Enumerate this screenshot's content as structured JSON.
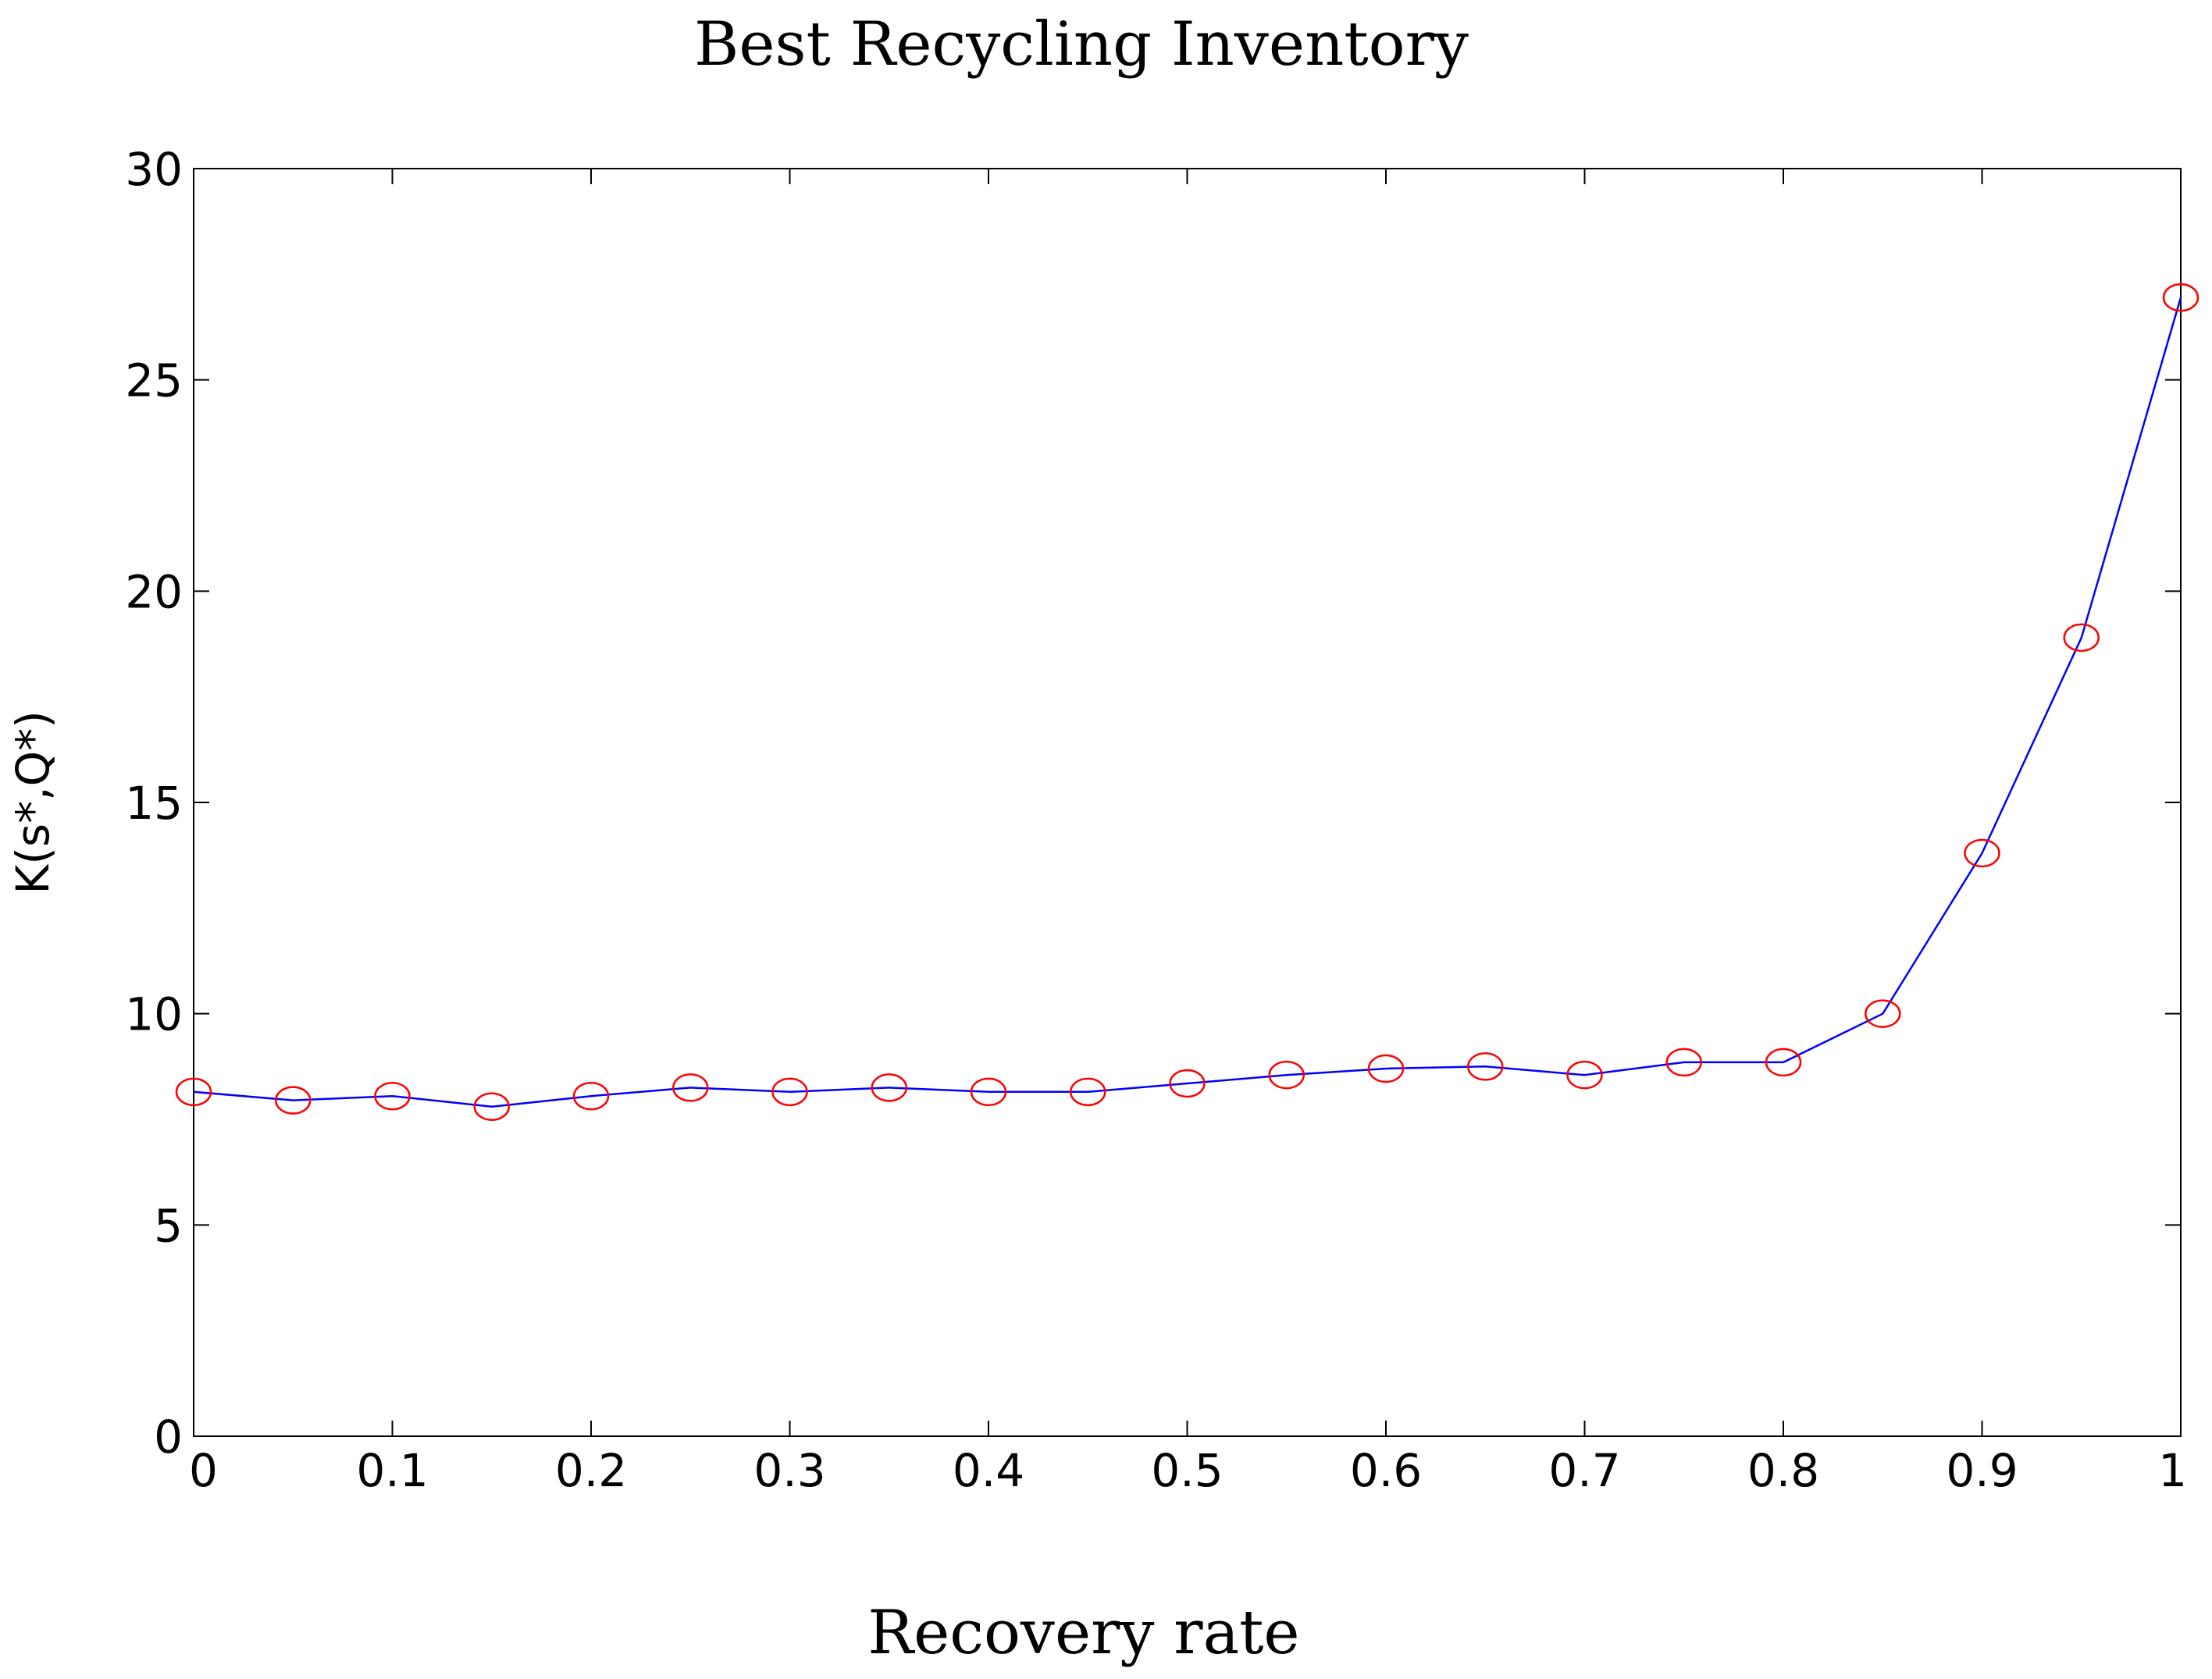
{
  "chart_data": {
    "type": "line",
    "title": "Best Recycling Inventory",
    "xlabel": "Recovery rate",
    "ylabel": "K(s*,Q*)",
    "xlim": [
      0,
      1
    ],
    "ylim": [
      0,
      30
    ],
    "xticks": [
      0,
      0.1,
      0.2,
      0.3,
      0.4,
      0.5,
      0.6,
      0.7,
      0.8,
      0.9,
      1
    ],
    "xtick_labels": [
      "0",
      "0.1",
      "0.2",
      "0.3",
      "0.4",
      "0.5",
      "0.6",
      "0.7",
      "0.8",
      "0.9",
      "1"
    ],
    "yticks": [
      0,
      5,
      10,
      15,
      20,
      25,
      30
    ],
    "ytick_labels": [
      "0",
      "5",
      "10",
      "15",
      "20",
      "25",
      "30"
    ],
    "grid": false,
    "series": [
      {
        "name": "K(s*,Q*)",
        "line_color": "#0000ff",
        "marker": "circle",
        "marker_color": "#ff0000",
        "x": [
          0,
          0.05,
          0.1,
          0.15,
          0.2,
          0.25,
          0.3,
          0.35,
          0.4,
          0.45,
          0.5,
          0.55,
          0.6,
          0.65,
          0.7,
          0.75,
          0.8,
          0.85,
          0.9,
          0.95,
          1.0
        ],
        "y": [
          8.15,
          7.95,
          8.05,
          7.8,
          8.05,
          8.25,
          8.15,
          8.25,
          8.15,
          8.15,
          8.35,
          8.55,
          8.7,
          8.75,
          8.55,
          8.85,
          8.85,
          10.0,
          13.8,
          18.9,
          26.95
        ]
      }
    ]
  }
}
